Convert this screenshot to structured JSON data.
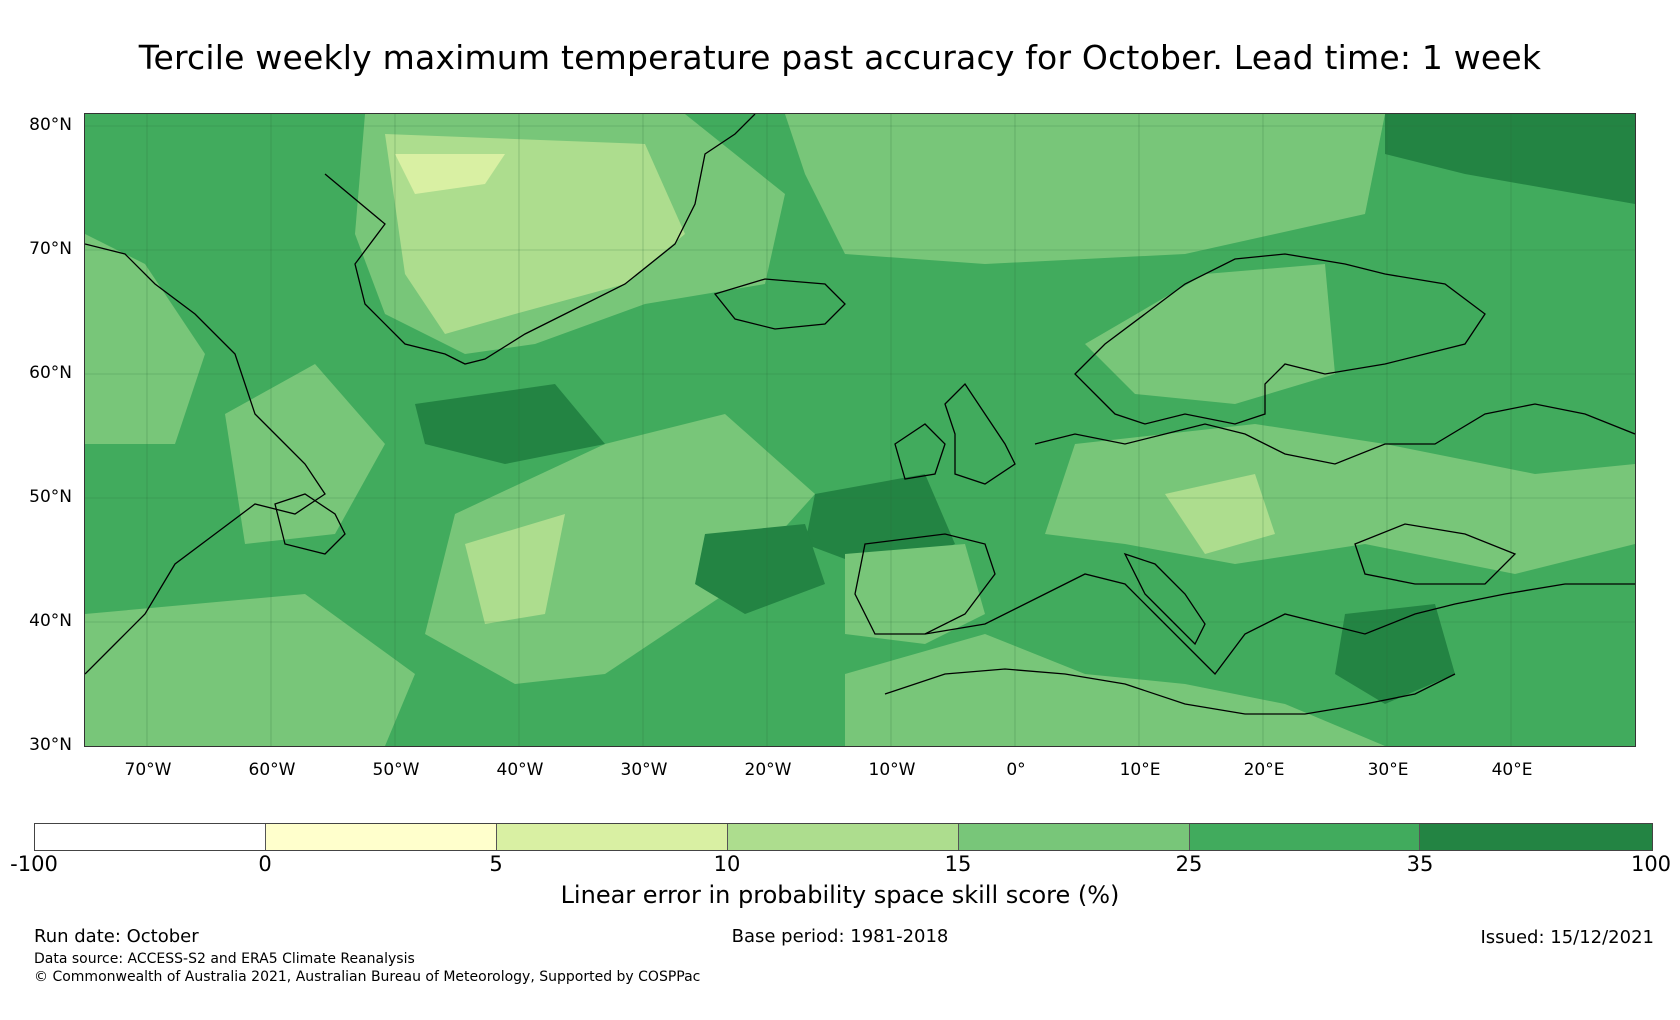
{
  "title": "Tercile weekly maximum temperature past accuracy for October. Lead time: 1 week",
  "map": {
    "region": "North Atlantic and Europe",
    "lon_range": [
      -75,
      50
    ],
    "lat_range": [
      30,
      81
    ],
    "lat_labels": [
      "80°N",
      "70°N",
      "60°N",
      "50°N",
      "40°N",
      "30°N"
    ],
    "lon_labels": [
      "70°W",
      "60°W",
      "50°W",
      "40°W",
      "30°W",
      "20°W",
      "10°W",
      "0°",
      "10°E",
      "20°E",
      "30°E",
      "40°E"
    ],
    "colors": {
      "ocean_base": "#41ab5d",
      "dark": "#238443",
      "mid": "#78c679",
      "light": "#addd8e",
      "pale": "#d9f0a3",
      "coast": "#000000"
    }
  },
  "colorbar": {
    "label": "Linear error in probability space skill score (%)",
    "ticks": [
      "-100",
      "0",
      "5",
      "10",
      "15",
      "25",
      "35",
      "100"
    ],
    "colors": [
      "#ffffff",
      "#ffffcc",
      "#d9f0a3",
      "#addd8e",
      "#78c679",
      "#41ab5d",
      "#238443"
    ]
  },
  "footer": {
    "run_date": "Run date: October",
    "base_period": "Base period: 1981-2018",
    "issued": "Issued: 15/12/2021",
    "data_source": "Data source: ACCESS-S2 and ERA5 Climate Reanalysis",
    "copyright": "© Commonwealth of Australia 2021, Australian Bureau of Meteorology, Supported by COSPPac"
  }
}
